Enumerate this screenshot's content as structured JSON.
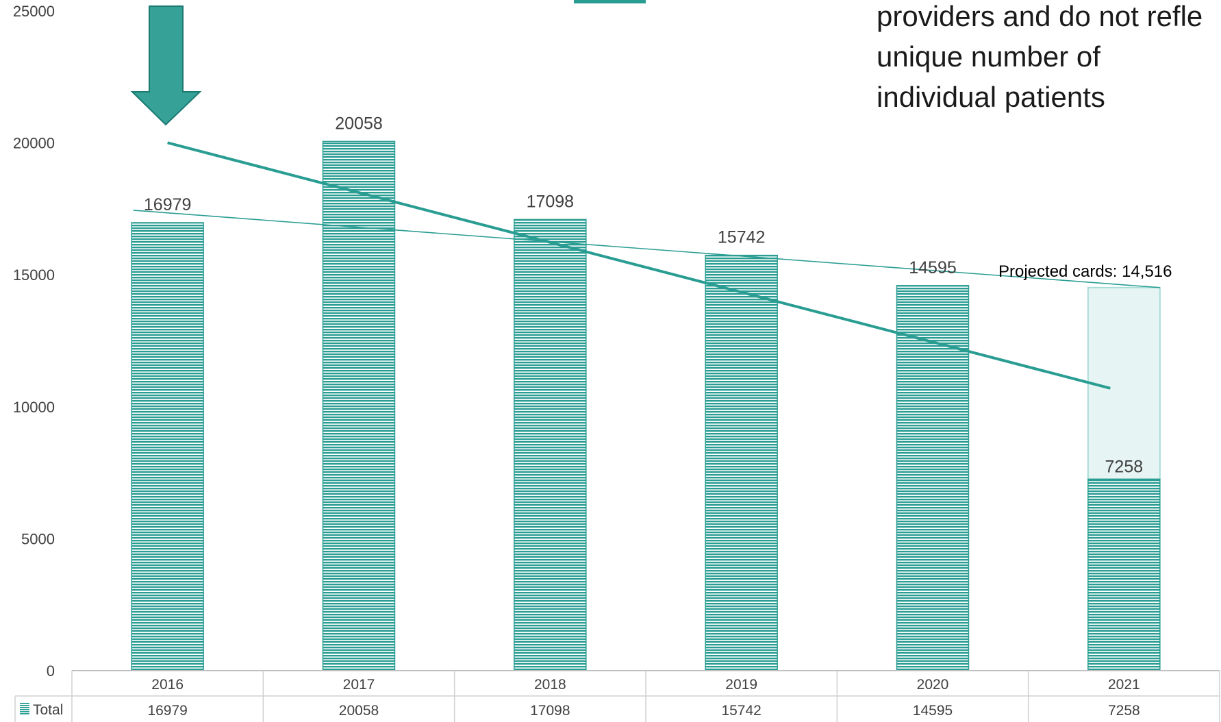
{
  "chart_data": {
    "type": "bar",
    "categories": [
      "2016",
      "2017",
      "2018",
      "2019",
      "2020",
      "2021"
    ],
    "series": [
      {
        "name": "Total",
        "values": [
          16979,
          20058,
          17098,
          15742,
          14595,
          7258
        ]
      }
    ],
    "projected": {
      "label": "Projected cards: 14,516",
      "value": 14516
    },
    "trendline_end": 10700,
    "ylim": [
      0,
      25000
    ],
    "yticks": [
      "0",
      "5000",
      "10000",
      "15000",
      "20000",
      "25000"
    ],
    "data_table_rows": [
      {
        "label": "Total",
        "values": [
          "16979",
          "20058",
          "17098",
          "15742",
          "14595",
          "7258"
        ]
      }
    ],
    "annotations": [
      "providers and do not refle",
      "unique number of",
      "individual patients"
    ],
    "grid": false,
    "legend": "data-table"
  },
  "colors": {
    "bar": "#2a9d93",
    "trend": "#2a9d93",
    "arrow": "#35a197",
    "arrow_edge": "#1c7a71",
    "projection_fill": "#e6f5f3",
    "projection_edge": "#a8ddd7",
    "text": "#404040",
    "table_border": "#d0d0d0"
  },
  "icons": [
    "down-arrow-icon",
    "legend-swatch-icon"
  ]
}
